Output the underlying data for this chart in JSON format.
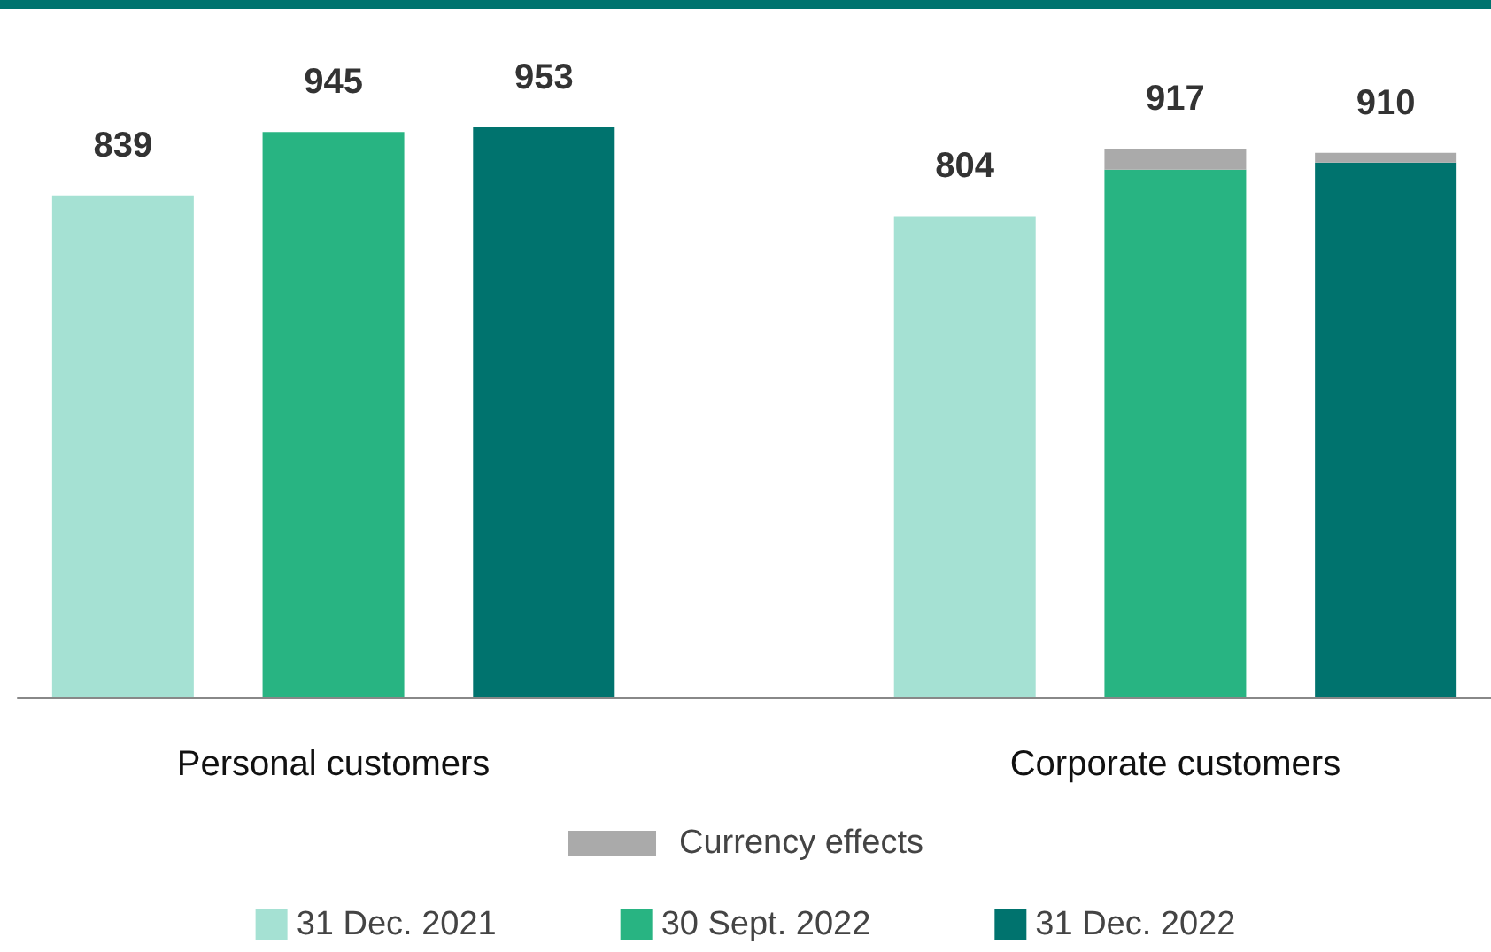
{
  "chart_data": {
    "type": "bar",
    "stacked": true,
    "categories": [
      null,
      "Personal customers",
      null,
      null,
      null,
      "Corporate customers",
      null
    ],
    "series": [
      {
        "name": "31 Dec. 2021",
        "color": "#a5e1d3",
        "values": [
          839,
          null,
          null,
          null,
          804,
          null,
          null
        ],
        "value_labels": [
          "839",
          null,
          null,
          null,
          "804",
          null,
          null
        ]
      },
      {
        "name": "30 Sept. 2022",
        "color": "#28b482",
        "values": [
          null,
          945,
          null,
          null,
          null,
          882,
          null
        ],
        "value_labels": [
          null,
          "945",
          null,
          null,
          null,
          null,
          null
        ]
      },
      {
        "name": "31 Dec. 2022",
        "color": "#00736e",
        "values": [
          null,
          null,
          953,
          null,
          null,
          null,
          894
        ],
        "value_labels": [
          null,
          null,
          "953",
          null,
          null,
          null,
          null
        ]
      },
      {
        "name": "Currency effects",
        "color": "#aaaaaa",
        "values": [
          null,
          null,
          null,
          null,
          null,
          35,
          16
        ]
      }
    ],
    "totals": [
      null,
      null,
      null,
      null,
      null,
      "917",
      "910"
    ],
    "tick_labels": "x",
    "legend": "bottom"
  }
}
